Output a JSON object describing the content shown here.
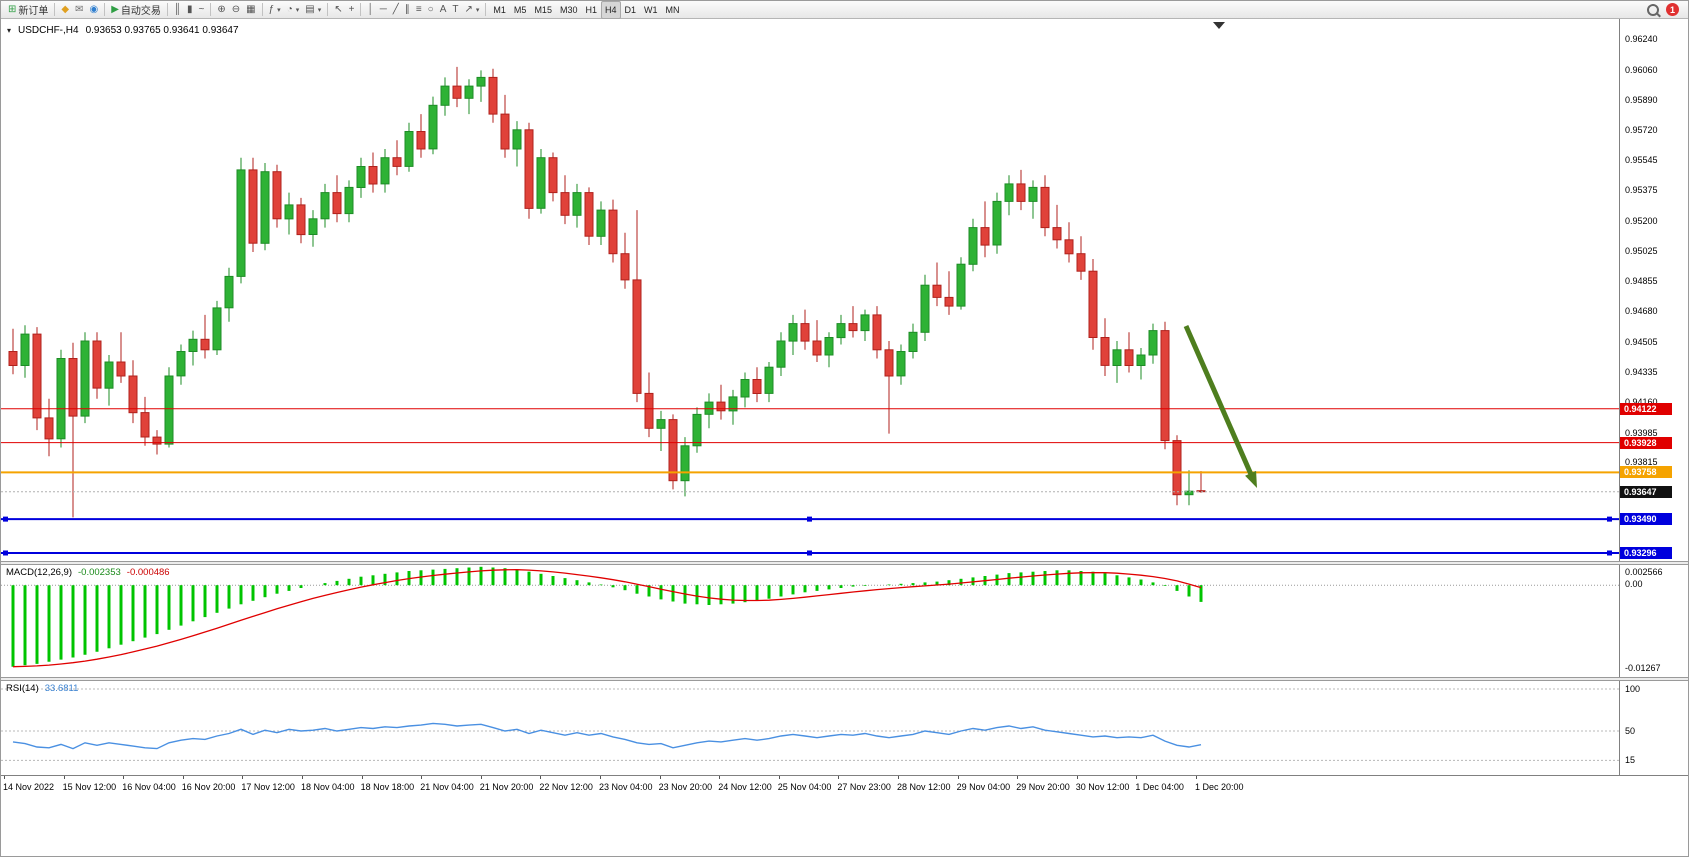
{
  "toolbar": {
    "badge_count": "1",
    "active_timeframe": "H4",
    "timeframes": [
      "M1",
      "M5",
      "M15",
      "M30",
      "H1",
      "H4",
      "D1",
      "W1",
      "MN"
    ],
    "buttons": [
      {
        "name": "new-order",
        "glyph": "⊞",
        "glyph_color": "#2f9e44",
        "label": "新订单"
      },
      {
        "name": "sep"
      },
      {
        "name": "sound-alert",
        "glyph": "◆",
        "glyph_color": "#e0a020"
      },
      {
        "name": "mail",
        "glyph": "✉",
        "glyph_color": "#707070"
      },
      {
        "name": "signals",
        "glyph": "◉",
        "glyph_color": "#2f7fd0"
      },
      {
        "name": "sep"
      },
      {
        "name": "auto-trading",
        "glyph": "▶",
        "glyph_color": "#2f9e44",
        "label": "自动交易"
      },
      {
        "name": "sep"
      },
      {
        "name": "bar-chart",
        "glyph": "║"
      },
      {
        "name": "candle-chart",
        "glyph": "▮"
      },
      {
        "name": "line-chart",
        "glyph": "~"
      },
      {
        "name": "sep"
      },
      {
        "name": "zoom-in",
        "glyph": "⊕"
      },
      {
        "name": "zoom-out",
        "glyph": "⊖"
      },
      {
        "name": "tile-windows",
        "glyph": "▦"
      },
      {
        "name": "sep"
      },
      {
        "name": "indicators",
        "glyph": "ƒ",
        "caret": true
      },
      {
        "name": "time-periods",
        "glyph": "◔",
        "caret": true
      },
      {
        "name": "templates",
        "glyph": "▤",
        "caret": true
      },
      {
        "name": "sep"
      },
      {
        "name": "cursor",
        "glyph": "↖"
      },
      {
        "name": "crosshair",
        "glyph": "+"
      },
      {
        "name": "sep"
      },
      {
        "name": "vertical-line",
        "glyph": "│"
      },
      {
        "name": "horizontal-line",
        "glyph": "─"
      },
      {
        "name": "trend-line",
        "glyph": "╱"
      },
      {
        "name": "equidistant-channel",
        "glyph": "∥"
      },
      {
        "name": "fibonacci",
        "glyph": "≡"
      },
      {
        "name": "shapes",
        "glyph": "○"
      },
      {
        "name": "text",
        "glyph": "A"
      },
      {
        "name": "text-label",
        "glyph": "T"
      },
      {
        "name": "arrows",
        "glyph": "↗",
        "caret": true
      },
      {
        "name": "sep"
      }
    ]
  },
  "chart": {
    "symbol_label": "USDCHF-,H4",
    "ohlc_label": "0.93653 0.93765 0.93641 0.93647"
  },
  "macd": {
    "label": "MACD(12,26,9)",
    "value_main": "-0.002353",
    "value_signal": "-0.000486",
    "axis_labels": [
      "0.002566",
      "0.00",
      "-0.01267"
    ]
  },
  "rsi": {
    "label": "RSI(14)",
    "value": "33.6811",
    "axis_labels": [
      "100",
      "50",
      "15"
    ]
  },
  "price_axis": {
    "labels": [
      "0.96240",
      "0.96060",
      "0.95890",
      "0.95720",
      "0.95545",
      "0.95375",
      "0.95200",
      "0.95025",
      "0.94855",
      "0.94680",
      "0.94505",
      "0.94335",
      "0.94160",
      "0.93985",
      "0.93815"
    ]
  },
  "markers": [
    {
      "value": "0.94122",
      "price": 0.94122,
      "color": "#e00000",
      "type": "hline",
      "width": 1
    },
    {
      "value": "0.93928",
      "price": 0.93928,
      "color": "#e00000",
      "type": "hline",
      "width": 1
    },
    {
      "value": "0.93758",
      "price": 0.93758,
      "color": "#f5a300",
      "type": "hline",
      "width": 2
    },
    {
      "value": "0.93647",
      "price": 0.93647,
      "color": "#111111",
      "type": "price"
    },
    {
      "value": "0.93490",
      "price": 0.9349,
      "color": "#0000dd",
      "type": "hline",
      "width": 2,
      "handles": true
    },
    {
      "value": "0.93296",
      "price": 0.93296,
      "color": "#0000dd",
      "type": "hline",
      "width": 2,
      "handles": true
    }
  ],
  "time_axis": [
    "14 Nov 2022",
    "15 Nov 12:00",
    "16 Nov 04:00",
    "16 Nov 20:00",
    "17 Nov 12:00",
    "18 Nov 04:00",
    "18 Nov 18:00",
    "21 Nov 04:00",
    "21 Nov 20:00",
    "22 Nov 12:00",
    "23 Nov 04:00",
    "23 Nov 20:00",
    "24 Nov 12:00",
    "25 Nov 04:00",
    "27 Nov 23:00",
    "28 Nov 12:00",
    "29 Nov 04:00",
    "29 Nov 20:00",
    "30 Nov 12:00",
    "1 Dec 04:00",
    "1 Dec 20:00"
  ],
  "colors": {
    "bull": "#2eb235",
    "bull_stroke": "#1d8c26",
    "bear": "#e0423a",
    "bear_stroke": "#b0211c",
    "macd_hist": "#00c400",
    "macd_signal": "#e00000",
    "rsi_line": "#4a90e2",
    "arrow": "#4e7e1e"
  },
  "chart_data": {
    "type": "candlestick",
    "title": "USDCHF H4",
    "price_range": [
      0.933,
      0.9624
    ],
    "ohlc_current": {
      "open": 0.93653,
      "high": 0.93765,
      "low": 0.93641,
      "close": 0.93647
    },
    "candles": [
      [
        0.9445,
        0.9458,
        0.9432,
        0.9437
      ],
      [
        0.9437,
        0.946,
        0.943,
        0.9455
      ],
      [
        0.9455,
        0.9459,
        0.94,
        0.9407
      ],
      [
        0.9407,
        0.9418,
        0.9385,
        0.9395
      ],
      [
        0.9395,
        0.9446,
        0.939,
        0.9441
      ],
      [
        0.9441,
        0.945,
        0.935,
        0.9408
      ],
      [
        0.9408,
        0.9456,
        0.9404,
        0.9451
      ],
      [
        0.9451,
        0.9456,
        0.9418,
        0.9424
      ],
      [
        0.9424,
        0.9443,
        0.9414,
        0.9439
      ],
      [
        0.9439,
        0.9456,
        0.9427,
        0.9431
      ],
      [
        0.9431,
        0.944,
        0.9404,
        0.941
      ],
      [
        0.941,
        0.9419,
        0.9391,
        0.9396
      ],
      [
        0.9396,
        0.94,
        0.9386,
        0.9392
      ],
      [
        0.9392,
        0.9436,
        0.939,
        0.9431
      ],
      [
        0.9431,
        0.9449,
        0.9426,
        0.9445
      ],
      [
        0.9445,
        0.9457,
        0.9437,
        0.9452
      ],
      [
        0.9452,
        0.9466,
        0.9441,
        0.9446
      ],
      [
        0.9446,
        0.9474,
        0.9443,
        0.947
      ],
      [
        0.947,
        0.9493,
        0.9462,
        0.9488
      ],
      [
        0.9488,
        0.9556,
        0.9484,
        0.9549
      ],
      [
        0.9549,
        0.9556,
        0.9502,
        0.9507
      ],
      [
        0.9507,
        0.9553,
        0.9503,
        0.9548
      ],
      [
        0.9548,
        0.9552,
        0.9516,
        0.9521
      ],
      [
        0.9521,
        0.9536,
        0.9512,
        0.9529
      ],
      [
        0.9529,
        0.9533,
        0.9507,
        0.9512
      ],
      [
        0.9512,
        0.9526,
        0.9505,
        0.9521
      ],
      [
        0.9521,
        0.9541,
        0.9516,
        0.9536
      ],
      [
        0.9536,
        0.9546,
        0.9519,
        0.9524
      ],
      [
        0.9524,
        0.9543,
        0.9519,
        0.9539
      ],
      [
        0.9539,
        0.9556,
        0.9533,
        0.9551
      ],
      [
        0.9551,
        0.9559,
        0.9536,
        0.9541
      ],
      [
        0.9541,
        0.9561,
        0.9536,
        0.9556
      ],
      [
        0.9556,
        0.9566,
        0.9546,
        0.9551
      ],
      [
        0.9551,
        0.9576,
        0.9548,
        0.9571
      ],
      [
        0.9571,
        0.9581,
        0.9556,
        0.9561
      ],
      [
        0.9561,
        0.9591,
        0.9558,
        0.9586
      ],
      [
        0.9586,
        0.9602,
        0.958,
        0.9597
      ],
      [
        0.9597,
        0.9608,
        0.9585,
        0.959
      ],
      [
        0.959,
        0.9601,
        0.9581,
        0.9597
      ],
      [
        0.9597,
        0.9606,
        0.9588,
        0.9602
      ],
      [
        0.9602,
        0.9607,
        0.9576,
        0.9581
      ],
      [
        0.9581,
        0.9592,
        0.9556,
        0.9561
      ],
      [
        0.9561,
        0.9577,
        0.9551,
        0.9572
      ],
      [
        0.9572,
        0.9576,
        0.9521,
        0.9527
      ],
      [
        0.9527,
        0.9561,
        0.9524,
        0.9556
      ],
      [
        0.9556,
        0.9559,
        0.9531,
        0.9536
      ],
      [
        0.9536,
        0.9546,
        0.9518,
        0.9523
      ],
      [
        0.9523,
        0.9541,
        0.9516,
        0.9536
      ],
      [
        0.9536,
        0.9539,
        0.9506,
        0.9511
      ],
      [
        0.9511,
        0.9531,
        0.9506,
        0.9526
      ],
      [
        0.9526,
        0.9532,
        0.9496,
        0.9501
      ],
      [
        0.9501,
        0.9513,
        0.9481,
        0.9486
      ],
      [
        0.9486,
        0.9526,
        0.9416,
        0.9421
      ],
      [
        0.9421,
        0.9433,
        0.9396,
        0.9401
      ],
      [
        0.9401,
        0.9411,
        0.9388,
        0.9406
      ],
      [
        0.9406,
        0.9409,
        0.9366,
        0.9371
      ],
      [
        0.9371,
        0.9396,
        0.9362,
        0.9391
      ],
      [
        0.9391,
        0.9413,
        0.9387,
        0.9409
      ],
      [
        0.9409,
        0.9421,
        0.9401,
        0.9416
      ],
      [
        0.9416,
        0.9426,
        0.9406,
        0.9411
      ],
      [
        0.9411,
        0.9423,
        0.9403,
        0.9419
      ],
      [
        0.9419,
        0.9433,
        0.9413,
        0.9429
      ],
      [
        0.9429,
        0.9436,
        0.9416,
        0.9421
      ],
      [
        0.9421,
        0.9439,
        0.9416,
        0.9436
      ],
      [
        0.9436,
        0.9456,
        0.9431,
        0.9451
      ],
      [
        0.9451,
        0.9466,
        0.9443,
        0.9461
      ],
      [
        0.9461,
        0.9469,
        0.9446,
        0.9451
      ],
      [
        0.9451,
        0.9463,
        0.9439,
        0.9443
      ],
      [
        0.9443,
        0.9456,
        0.9436,
        0.9453
      ],
      [
        0.9453,
        0.9466,
        0.9449,
        0.9461
      ],
      [
        0.9461,
        0.9471,
        0.9453,
        0.9457
      ],
      [
        0.9457,
        0.9469,
        0.9451,
        0.9466
      ],
      [
        0.9466,
        0.9471,
        0.9441,
        0.9446
      ],
      [
        0.9446,
        0.9451,
        0.9398,
        0.9431
      ],
      [
        0.9431,
        0.9449,
        0.9426,
        0.9445
      ],
      [
        0.9445,
        0.9461,
        0.9441,
        0.9456
      ],
      [
        0.9456,
        0.9489,
        0.9451,
        0.9483
      ],
      [
        0.9483,
        0.9496,
        0.9471,
        0.9476
      ],
      [
        0.9476,
        0.9491,
        0.9466,
        0.9471
      ],
      [
        0.9471,
        0.9499,
        0.9469,
        0.9495
      ],
      [
        0.9495,
        0.9521,
        0.9491,
        0.9516
      ],
      [
        0.9516,
        0.9531,
        0.9499,
        0.9506
      ],
      [
        0.9506,
        0.9536,
        0.9501,
        0.9531
      ],
      [
        0.9531,
        0.9546,
        0.9523,
        0.9541
      ],
      [
        0.9541,
        0.9549,
        0.9526,
        0.9531
      ],
      [
        0.9531,
        0.9543,
        0.9521,
        0.9539
      ],
      [
        0.9539,
        0.9546,
        0.9511,
        0.9516
      ],
      [
        0.9516,
        0.9529,
        0.9504,
        0.9509
      ],
      [
        0.9509,
        0.9519,
        0.9496,
        0.9501
      ],
      [
        0.9501,
        0.9511,
        0.9486,
        0.9491
      ],
      [
        0.9491,
        0.9498,
        0.9446,
        0.9453
      ],
      [
        0.9453,
        0.9464,
        0.9431,
        0.9437
      ],
      [
        0.9437,
        0.9451,
        0.9427,
        0.9446
      ],
      [
        0.9446,
        0.9456,
        0.9433,
        0.9437
      ],
      [
        0.9437,
        0.9447,
        0.9429,
        0.9443
      ],
      [
        0.9443,
        0.9461,
        0.9438,
        0.9457
      ],
      [
        0.9457,
        0.9462,
        0.9389,
        0.9394
      ],
      [
        0.9394,
        0.9397,
        0.9357,
        0.9363
      ],
      [
        0.9363,
        0.9377,
        0.9357,
        0.9365
      ],
      [
        0.93653,
        0.93765,
        0.93641,
        0.93647
      ]
    ],
    "macd_histogram": [
      -0.0115,
      -0.0113,
      -0.0111,
      -0.0108,
      -0.0105,
      -0.0102,
      -0.0098,
      -0.0094,
      -0.0089,
      -0.0084,
      -0.0079,
      -0.0074,
      -0.0069,
      -0.0063,
      -0.0057,
      -0.0051,
      -0.0045,
      -0.0039,
      -0.0033,
      -0.0027,
      -0.0022,
      -0.0017,
      -0.0012,
      -0.0008,
      -0.0004,
      0.0,
      0.0003,
      0.0006,
      0.0009,
      0.0012,
      0.0014,
      0.0016,
      0.0018,
      0.002,
      0.0021,
      0.0022,
      0.0023,
      0.0024,
      0.0025,
      0.0026,
      0.0025,
      0.0024,
      0.0022,
      0.0019,
      0.0016,
      0.0013,
      0.001,
      0.0007,
      0.0004,
      0.0001,
      -0.0003,
      -0.0007,
      -0.0012,
      -0.0016,
      -0.002,
      -0.0023,
      -0.0026,
      -0.0027,
      -0.0028,
      -0.0027,
      -0.0026,
      -0.0024,
      -0.0022,
      -0.0019,
      -0.0016,
      -0.0013,
      -0.001,
      -0.0008,
      -0.0006,
      -0.0004,
      -0.0002,
      -0.0001,
      0.0,
      0.0001,
      0.0002,
      0.0003,
      0.0004,
      0.0005,
      0.0007,
      0.0009,
      0.0011,
      0.0013,
      0.0015,
      0.0017,
      0.0018,
      0.0019,
      0.002,
      0.0021,
      0.0021,
      0.002,
      0.0019,
      0.0017,
      0.0014,
      0.0011,
      0.0008,
      0.0004,
      -0.0001,
      -0.0008,
      -0.0016,
      -0.002353
    ],
    "macd_range": [
      -0.01267,
      0.002566
    ],
    "rsi_values": [
      37,
      35,
      31,
      30,
      34,
      29,
      36,
      33,
      36,
      34,
      32,
      30,
      29,
      36,
      39,
      41,
      40,
      44,
      47,
      52,
      46,
      51,
      48,
      52,
      50,
      51,
      53,
      50,
      52,
      54,
      53,
      55,
      54,
      56,
      57,
      59,
      58,
      56,
      57,
      58,
      54,
      50,
      52,
      47,
      51,
      48,
      45,
      48,
      45,
      47,
      43,
      40,
      36,
      34,
      35,
      30,
      33,
      36,
      38,
      37,
      39,
      41,
      39,
      41,
      44,
      46,
      44,
      42,
      44,
      46,
      45,
      47,
      44,
      42,
      44,
      46,
      50,
      48,
      46,
      50,
      53,
      51,
      54,
      56,
      53,
      55,
      51,
      49,
      47,
      45,
      43,
      44,
      42,
      43,
      42,
      45,
      38,
      33,
      31,
      33.68
    ],
    "rsi_levels": [
      100,
      50,
      15
    ],
    "annotations": [
      {
        "type": "arrow",
        "from": [
          1185,
          307
        ],
        "to": [
          1256,
          469
        ],
        "color": "#4e7e1e"
      }
    ]
  }
}
